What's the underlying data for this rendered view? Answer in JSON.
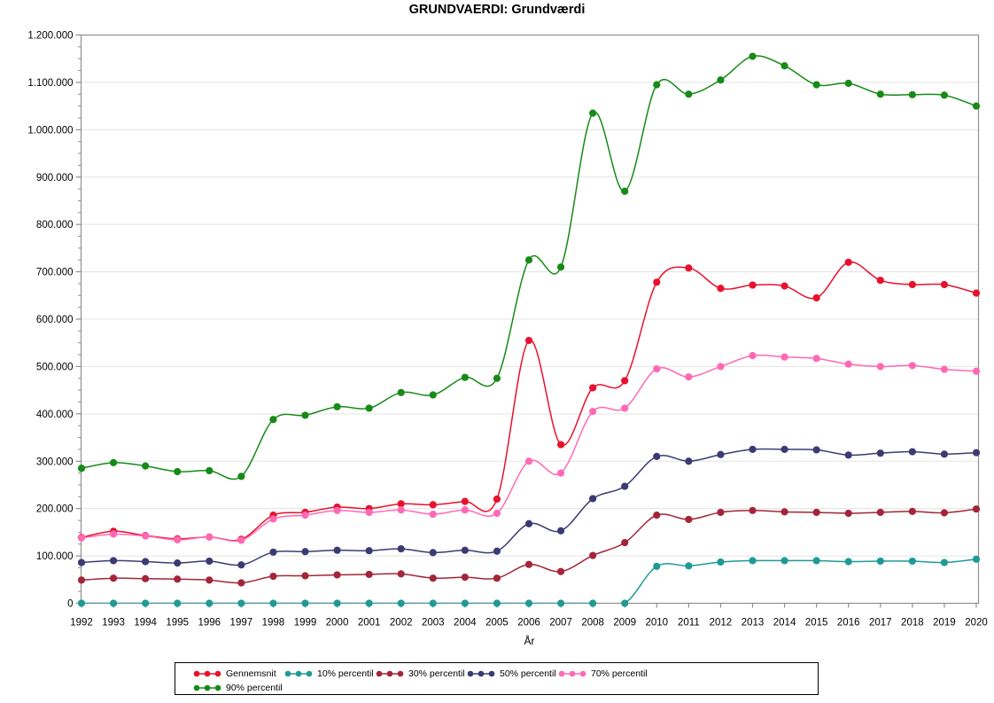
{
  "chart_data": {
    "type": "line",
    "title": "GRUNDVAERDI: Grundværdi",
    "xlabel": "År",
    "ylabel": "",
    "x": [
      1992,
      1993,
      1994,
      1995,
      1996,
      1997,
      1998,
      1999,
      2000,
      2001,
      2002,
      2003,
      2004,
      2005,
      2006,
      2007,
      2008,
      2009,
      2010,
      2011,
      2012,
      2013,
      2014,
      2015,
      2016,
      2017,
      2018,
      2019,
      2020
    ],
    "x_tick_labels": [
      "1992",
      "1993",
      "1994",
      "1995",
      "1996",
      "1997",
      "1998",
      "1999",
      "2000",
      "2001",
      "2002",
      "2003",
      "2004",
      "2005",
      "2006",
      "2007",
      "2008",
      "2009",
      "2010",
      "2011",
      "2012",
      "2013",
      "2014",
      "2015",
      "2016",
      "2017",
      "2018",
      "2019",
      "2020"
    ],
    "ylim": [
      0,
      1200000
    ],
    "y_tick_interval": 100000,
    "y_minor_tick_interval": 25000,
    "y_tick_labels": [
      "0",
      "100.000",
      "200.000",
      "300.000",
      "400.000",
      "500.000",
      "600.000",
      "700.000",
      "800.000",
      "900.000",
      "1.000.000",
      "1.100.000",
      "1.200.000"
    ],
    "grid": "horizontal",
    "legend_position": "bottom",
    "axis_color": "#909090",
    "grid_color": "#e3e3e3",
    "series": [
      {
        "name": "Gennemsnit",
        "color": "#e8112d",
        "values": [
          139000,
          152000,
          143000,
          136000,
          140000,
          135000,
          186000,
          192000,
          203000,
          200000,
          210000,
          208000,
          215000,
          220000,
          555000,
          335000,
          455000,
          470000,
          678000,
          708000,
          665000,
          672000,
          670000,
          645000,
          720000,
          682000,
          673000,
          673000,
          655000
        ]
      },
      {
        "name": "10% percentil",
        "color": "#1f9a94",
        "values": [
          0,
          0,
          0,
          0,
          0,
          0,
          0,
          0,
          0,
          0,
          0,
          0,
          0,
          0,
          0,
          0,
          0,
          0,
          78000,
          79000,
          87000,
          90000,
          90000,
          90000,
          88000,
          89000,
          89000,
          86000,
          93000
        ]
      },
      {
        "name": "30% percentil",
        "color": "#a32638",
        "values": [
          49000,
          53000,
          52000,
          51000,
          49000,
          43000,
          57000,
          58000,
          60000,
          61000,
          62000,
          53000,
          55000,
          53000,
          82000,
          67000,
          101000,
          128000,
          186000,
          177000,
          192000,
          196000,
          193000,
          192000,
          190000,
          192000,
          194000,
          191000,
          199000
        ]
      },
      {
        "name": "50% percentil",
        "color": "#3b3b74",
        "values": [
          86000,
          90000,
          88000,
          85000,
          89000,
          81000,
          108000,
          109000,
          112000,
          111000,
          115000,
          107000,
          112000,
          110000,
          168000,
          153000,
          221000,
          247000,
          310000,
          300000,
          314000,
          325000,
          325000,
          324000,
          313000,
          317000,
          320000,
          315000,
          318000
        ]
      },
      {
        "name": "70% percentil",
        "color": "#ff69b4",
        "values": [
          138000,
          146000,
          142000,
          134000,
          140000,
          133000,
          178000,
          186000,
          196000,
          192000,
          197000,
          188000,
          197000,
          190000,
          300000,
          275000,
          405000,
          412000,
          495000,
          478000,
          500000,
          523000,
          520000,
          517000,
          505000,
          500000,
          502000,
          494000,
          490000
        ]
      },
      {
        "name": "90% percentil",
        "color": "#178a17",
        "values": [
          285000,
          297000,
          290000,
          278000,
          280000,
          268000,
          388000,
          397000,
          415000,
          412000,
          445000,
          440000,
          477000,
          475000,
          725000,
          710000,
          1035000,
          870000,
          1095000,
          1075000,
          1105000,
          1155000,
          1135000,
          1095000,
          1098000,
          1075000,
          1074000,
          1073000,
          1050000
        ]
      }
    ]
  }
}
